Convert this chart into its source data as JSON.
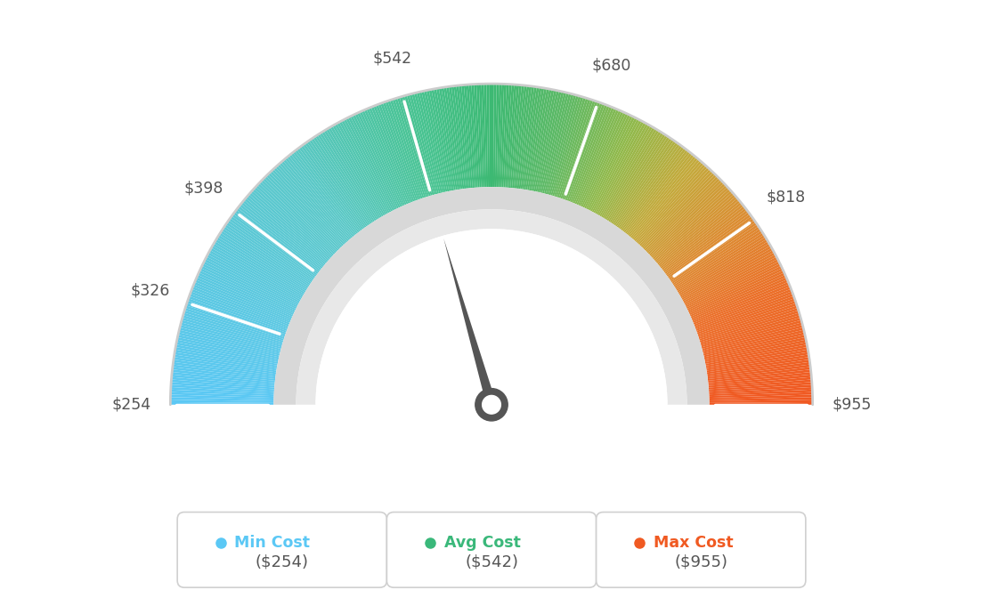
{
  "min_val": 254,
  "max_val": 955,
  "avg_val": 542,
  "tick_labels": [
    "$254",
    "$326",
    "$398",
    "$542",
    "$680",
    "$818",
    "$955"
  ],
  "tick_values": [
    254,
    326,
    398,
    542,
    680,
    818,
    955
  ],
  "min_cost_label": "Min Cost",
  "avg_cost_label": "Avg Cost",
  "max_cost_label": "Max Cost",
  "min_cost_val": "($254)",
  "avg_cost_val": "($542)",
  "max_cost_val": "($955)",
  "min_color": "#5bc8f5",
  "avg_color": "#3ab87a",
  "max_color": "#f05a22",
  "background": "#ffffff",
  "color_stops": [
    [
      0.0,
      [
        91,
        200,
        245
      ]
    ],
    [
      0.28,
      [
        91,
        200,
        200
      ]
    ],
    [
      0.42,
      [
        72,
        195,
        145
      ]
    ],
    [
      0.5,
      [
        60,
        185,
        115
      ]
    ],
    [
      0.58,
      [
        95,
        185,
        100
      ]
    ],
    [
      0.65,
      [
        145,
        185,
        75
      ]
    ],
    [
      0.72,
      [
        195,
        170,
        60
      ]
    ],
    [
      0.8,
      [
        220,
        140,
        50
      ]
    ],
    [
      0.88,
      [
        235,
        110,
        40
      ]
    ],
    [
      1.0,
      [
        240,
        88,
        34
      ]
    ]
  ]
}
